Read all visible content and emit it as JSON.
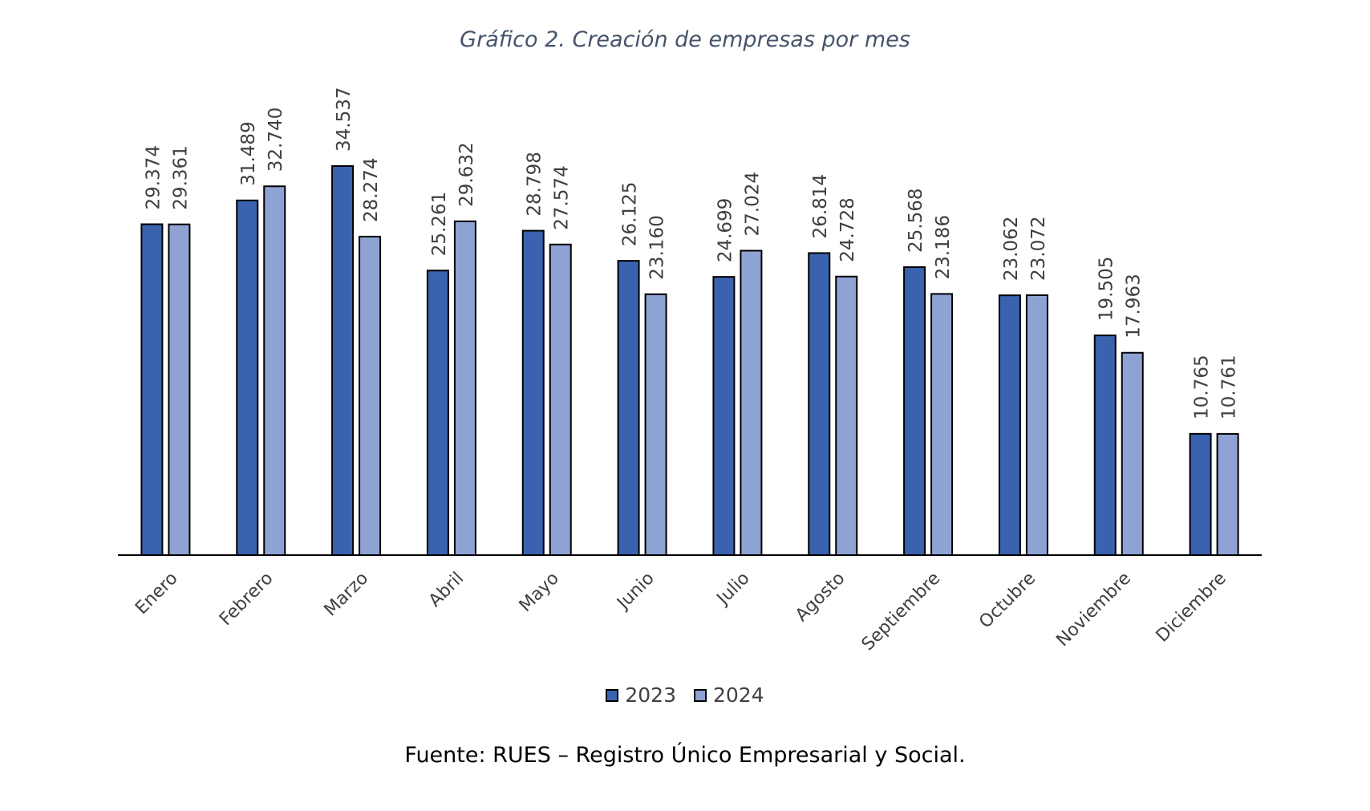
{
  "title": "Gráfico 2. Creación de empresas por mes",
  "source": "Fuente: RUES – Registro Único Empresarial y Social.",
  "colors": {
    "s2023": "#3a62ae",
    "s2024": "#8fa2d4",
    "axis": "#000000",
    "text": "#404040"
  },
  "chart_data": {
    "type": "bar",
    "categories": [
      "Enero",
      "Febrero",
      "Marzo",
      "Abril",
      "Mayo",
      "Junio",
      "Julio",
      "Agosto",
      "Septiembre",
      "Octubre",
      "Noviembre",
      "Diciembre"
    ],
    "series": [
      {
        "name": "2023",
        "values": [
          29374,
          31489,
          34537,
          25261,
          28798,
          26125,
          24699,
          26814,
          25568,
          23062,
          19505,
          10765
        ],
        "labels": [
          "29.374",
          "31.489",
          "34.537",
          "25.261",
          "28.798",
          "26.125",
          "24.699",
          "26.814",
          "25.568",
          "23.062",
          "19.505",
          "10.765"
        ]
      },
      {
        "name": "2024",
        "values": [
          29361,
          32740,
          28274,
          29632,
          27574,
          23160,
          27024,
          24728,
          23186,
          23072,
          17963,
          10761
        ],
        "labels": [
          "29.361",
          "32.740",
          "28.274",
          "29.632",
          "27.574",
          "23.160",
          "27.024",
          "24.728",
          "23.186",
          "23.072",
          "17.963",
          "10.761"
        ]
      }
    ],
    "ylim": [
      0,
      35000
    ],
    "grid": false,
    "legend": "bottom"
  }
}
